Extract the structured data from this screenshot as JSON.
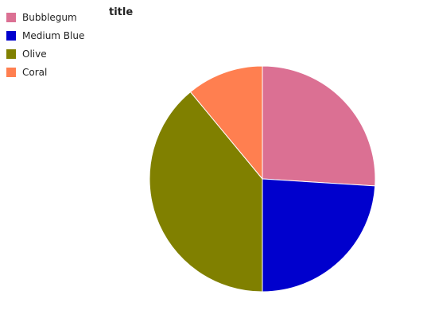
{
  "chart_data": {
    "type": "pie",
    "title": "title",
    "slices": [
      {
        "name": "Bubblegum",
        "value": 26.0,
        "color": "#db7093"
      },
      {
        "name": "Medium Blue",
        "value": 24.0,
        "color": "#0000cd"
      },
      {
        "name": "Olive",
        "value": 39.0,
        "color": "#808000"
      },
      {
        "name": "Coral",
        "value": 11.0,
        "color": "#ff7f50"
      }
    ],
    "start_angle_deg": 90,
    "direction": "clockwise",
    "legend_position": "top-left"
  }
}
